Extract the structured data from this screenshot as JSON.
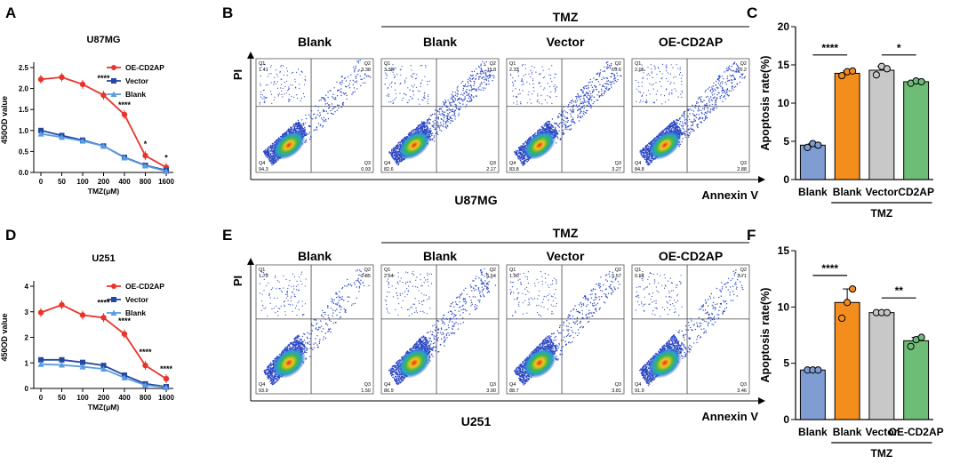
{
  "panel_letters": [
    "A",
    "B",
    "C",
    "D",
    "E",
    "F"
  ],
  "colors": {
    "oe": "#e8342a",
    "vector": "#2447a0",
    "blank": "#5a9de0",
    "bar_blank": "#7f9dd3",
    "bar_tmz": "#f28d1e",
    "bar_vector": "#c8c8c8",
    "bar_cd2ap": "#6dbd76"
  },
  "chart_data": [
    {
      "panel": "A",
      "type": "line",
      "title": "U87MG",
      "ylabel": "450OD value",
      "xlabel": "TMZ(μM)",
      "categories": [
        "0",
        "50",
        "100",
        "200",
        "400",
        "800",
        "1600"
      ],
      "yticks": [
        "0.0",
        "0.5",
        "1.0",
        "1.5",
        "2.0",
        "2.5"
      ],
      "ylim": [
        0,
        2.5
      ],
      "series": [
        {
          "name": "OE-CD2AP",
          "values": [
            2.22,
            2.27,
            2.1,
            1.84,
            1.38,
            0.4,
            0.12
          ]
        },
        {
          "name": "Vector",
          "values": [
            1.0,
            0.88,
            0.77,
            0.63,
            0.36,
            0.17,
            0.05
          ]
        },
        {
          "name": "Blank",
          "values": [
            0.92,
            0.84,
            0.75,
            0.63,
            0.35,
            0.16,
            0.03
          ]
        }
      ],
      "annotations": [
        "****",
        "****",
        "*",
        "*"
      ]
    },
    {
      "panel": "D",
      "type": "line",
      "title": "U251",
      "ylabel": "450OD value",
      "xlabel": "TMZ(μM)",
      "categories": [
        "0",
        "50",
        "100",
        "200",
        "400",
        "800",
        "1600"
      ],
      "yticks": [
        "0",
        "1",
        "2",
        "3",
        "4"
      ],
      "ylim": [
        0,
        4
      ],
      "series": [
        {
          "name": "OE-CD2AP",
          "values": [
            2.97,
            3.27,
            2.87,
            2.77,
            2.13,
            0.9,
            0.38
          ]
        },
        {
          "name": "Vector",
          "values": [
            1.12,
            1.12,
            1.02,
            0.9,
            0.52,
            0.18,
            0.07
          ]
        },
        {
          "name": "Blank",
          "values": [
            0.95,
            0.92,
            0.85,
            0.76,
            0.42,
            0.13,
            0.04
          ]
        }
      ],
      "annotations": [
        "****",
        "****",
        "****",
        "****"
      ]
    },
    {
      "panel": "C",
      "type": "bar",
      "ylabel": "Apoptosis rate(%)",
      "categories": [
        "Blank",
        "Blank",
        "Vector",
        "CD2AP"
      ],
      "group_label": "TMZ",
      "yticks": [
        "0",
        "5",
        "10",
        "15",
        "20"
      ],
      "ylim": [
        0,
        20
      ],
      "values": [
        4.5,
        13.9,
        14.3,
        12.8
      ],
      "points": [
        [
          4.2,
          4.7,
          4.5
        ],
        [
          13.6,
          14.1,
          14.2
        ],
        [
          13.7,
          14.8,
          14.5
        ],
        [
          12.6,
          12.9,
          12.8
        ]
      ],
      "significance": [
        "****",
        "*"
      ]
    },
    {
      "panel": "F",
      "type": "bar",
      "ylabel": "Apoptosis rate(%)",
      "categories": [
        "Blank",
        "Blank",
        "Vector",
        "OE-CD2AP"
      ],
      "group_label": "TMZ",
      "yticks": [
        "0",
        "5",
        "10",
        "15"
      ],
      "ylim": [
        0,
        15
      ],
      "values": [
        4.4,
        10.4,
        9.5,
        7.0
      ],
      "points": [
        [
          4.4,
          4.4,
          4.4
        ],
        [
          9.0,
          10.4,
          11.6
        ],
        [
          9.5,
          9.5,
          9.5
        ],
        [
          6.5,
          7.1,
          7.3
        ]
      ],
      "significance": [
        "****",
        "**"
      ]
    },
    {
      "panel": "B",
      "type": "scatter",
      "cell_line": "U87MG",
      "x_axis": "Annexin V",
      "y_axis": "PI",
      "treatment": "TMZ",
      "plots": [
        {
          "label": "Blank",
          "quadrants": {
            "q1": "1.41",
            "q2": "3.38",
            "q3": "0.93",
            "q4": "94.3"
          }
        },
        {
          "label": "Blank",
          "quadrants": {
            "q1": "3.38",
            "q2": "11.8",
            "q3": "2.17",
            "q4": "82.6"
          }
        },
        {
          "label": "Vector",
          "quadrants": {
            "q1": "2.33",
            "q2": "10.6",
            "q3": "3.27",
            "q4": "83.8"
          }
        },
        {
          "label": "OE-CD2AP",
          "quadrants": {
            "q1": "2.06",
            "q2": "10.2",
            "q3": "2.88",
            "q4": "84.8"
          }
        }
      ]
    },
    {
      "panel": "E",
      "type": "scatter",
      "cell_line": "U251",
      "x_axis": "Annexin V",
      "y_axis": "PI",
      "treatment": "TMZ",
      "plots": [
        {
          "label": "Blank",
          "quadrants": {
            "q1": "1.79",
            "q2": "2.85",
            "q3": "1.50",
            "q4": "93.9"
          }
        },
        {
          "label": "Blank",
          "quadrants": {
            "q1": "2.64",
            "q2": "6.54",
            "q3": "3.90",
            "q4": "86.9"
          }
        },
        {
          "label": "Vector",
          "quadrants": {
            "q1": "1.90",
            "q2": "5.57",
            "q3": "3.81",
            "q4": "88.7"
          }
        },
        {
          "label": "OE-CD2AP",
          "quadrants": {
            "q1": "0.94",
            "q2": "3.71",
            "q3": "3.46",
            "q4": "91.9"
          }
        }
      ]
    }
  ]
}
